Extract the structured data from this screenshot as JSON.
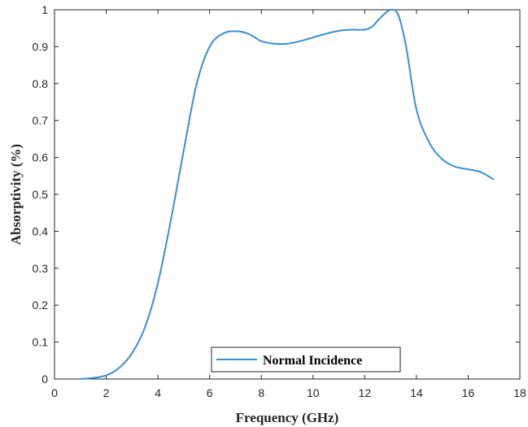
{
  "chart_data": {
    "type": "line",
    "xlabel": "Frequency (GHz)",
    "ylabel": "Absorptivity (%)",
    "xlim": [
      0,
      18
    ],
    "ylim": [
      0,
      1
    ],
    "xticks": [
      "0",
      "2",
      "4",
      "6",
      "8",
      "10",
      "12",
      "14",
      "16",
      "18"
    ],
    "yticks": [
      "0",
      "0.1",
      "0.2",
      "0.3",
      "0.4",
      "0.5",
      "0.6",
      "0.7",
      "0.8",
      "0.9",
      "1"
    ],
    "grid": false,
    "legend_position": "bottom-center",
    "series": [
      {
        "name": "Normal Incidence",
        "color": "#3a8fcf",
        "x": [
          1,
          1.5,
          2,
          2.5,
          3,
          3.5,
          4,
          4.5,
          5,
          5.5,
          6,
          6.5,
          7,
          7.5,
          8,
          8.5,
          9,
          9.5,
          10,
          10.5,
          11,
          11.5,
          12,
          12.3,
          12.6,
          13,
          13.3,
          13.6,
          14,
          14.5,
          15,
          15.5,
          16,
          16.5,
          17
        ],
        "y": [
          0,
          0.003,
          0.01,
          0.03,
          0.07,
          0.14,
          0.26,
          0.43,
          0.62,
          0.8,
          0.9,
          0.935,
          0.942,
          0.935,
          0.915,
          0.908,
          0.908,
          0.915,
          0.925,
          0.935,
          0.943,
          0.946,
          0.946,
          0.955,
          0.978,
          1.0,
          0.985,
          0.9,
          0.73,
          0.64,
          0.595,
          0.575,
          0.568,
          0.56,
          0.54
        ]
      }
    ]
  }
}
